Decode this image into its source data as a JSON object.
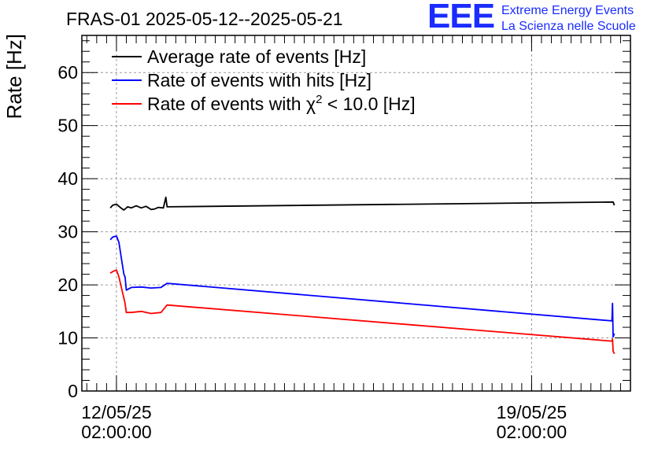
{
  "chart_data": {
    "type": "line",
    "title": "FRAS-01 2025-05-12--2025-05-21",
    "ylabel": "Rate [Hz]",
    "xlabel": "",
    "ylim": [
      0,
      67
    ],
    "yticks": [
      0,
      10,
      20,
      30,
      40,
      50,
      60
    ],
    "x_range": [
      "2025-05-11 12:00",
      "2025-05-20 18:00"
    ],
    "x_ticks": [
      {
        "x": "2025-05-12 02:00",
        "label_line1": "12/05/25",
        "label_line2": "02:00:00"
      },
      {
        "x": "2025-05-19 02:00",
        "label_line1": "19/05/25",
        "label_line2": "02:00:00"
      }
    ],
    "grid": true,
    "legend_position": "top-left",
    "series": [
      {
        "name": "Average rate of events [Hz]",
        "legend_prefix": "Average rate of events [Hz]",
        "legend_sup": "",
        "legend_suffix": "",
        "color": "#000000",
        "points": [
          [
            "2025-05-11 23:30",
            34.5
          ],
          [
            "2025-05-12 00:30",
            35.0
          ],
          [
            "2025-05-12 02:00",
            35.2
          ],
          [
            "2025-05-12 03:30",
            34.6
          ],
          [
            "2025-05-12 05:00",
            34.1
          ],
          [
            "2025-05-12 06:30",
            34.7
          ],
          [
            "2025-05-12 08:00",
            34.5
          ],
          [
            "2025-05-12 10:00",
            34.9
          ],
          [
            "2025-05-12 12:00",
            34.5
          ],
          [
            "2025-05-12 14:00",
            34.8
          ],
          [
            "2025-05-12 16:00",
            34.2
          ],
          [
            "2025-05-12 17:30",
            34.3
          ],
          [
            "2025-05-12 19:00",
            34.6
          ],
          [
            "2025-05-12 21:00",
            34.5
          ],
          [
            "2025-05-12 22:00",
            36.5
          ],
          [
            "2025-05-12 22:30",
            34.7
          ],
          [
            "2025-05-20 11:00",
            35.6
          ],
          [
            "2025-05-20 11:30",
            35.0
          ]
        ]
      },
      {
        "name": "Rate of events with hits [Hz]",
        "legend_prefix": "Rate of events with hits [Hz]",
        "legend_sup": "",
        "legend_suffix": "",
        "color": "#0000ff",
        "points": [
          [
            "2025-05-11 23:30",
            28.5
          ],
          [
            "2025-05-12 00:30",
            29.0
          ],
          [
            "2025-05-12 02:00",
            29.2
          ],
          [
            "2025-05-12 03:00",
            28.0
          ],
          [
            "2025-05-12 04:00",
            25.0
          ],
          [
            "2025-05-12 05:00",
            22.0
          ],
          [
            "2025-05-12 05:30",
            21.5
          ],
          [
            "2025-05-12 06:00",
            19.0
          ],
          [
            "2025-05-12 08:00",
            19.5
          ],
          [
            "2025-05-12 12:00",
            19.6
          ],
          [
            "2025-05-12 16:00",
            19.4
          ],
          [
            "2025-05-12 20:00",
            19.5
          ],
          [
            "2025-05-12 22:30",
            20.3
          ],
          [
            "2025-05-20 10:30",
            13.2
          ],
          [
            "2025-05-20 10:45",
            16.5
          ],
          [
            "2025-05-20 11:00",
            10.2
          ],
          [
            "2025-05-20 11:30",
            10.8
          ]
        ]
      },
      {
        "name": "Rate of events with χ2 < 10.0 [Hz]",
        "legend_prefix": "Rate of events with χ",
        "legend_sup": "2",
        "legend_suffix": " < 10.0 [Hz]",
        "color": "#ff0000",
        "points": [
          [
            "2025-05-11 23:30",
            22.2
          ],
          [
            "2025-05-12 00:30",
            22.5
          ],
          [
            "2025-05-12 02:00",
            22.8
          ],
          [
            "2025-05-12 03:00",
            21.5
          ],
          [
            "2025-05-12 04:00",
            19.5
          ],
          [
            "2025-05-12 05:00",
            17.5
          ],
          [
            "2025-05-12 05:30",
            16.5
          ],
          [
            "2025-05-12 06:00",
            14.8
          ],
          [
            "2025-05-12 08:00",
            14.8
          ],
          [
            "2025-05-12 12:00",
            15.0
          ],
          [
            "2025-05-12 16:00",
            14.6
          ],
          [
            "2025-05-12 20:00",
            14.8
          ],
          [
            "2025-05-12 22:30",
            16.2
          ],
          [
            "2025-05-20 10:30",
            9.4
          ],
          [
            "2025-05-20 10:45",
            9.8
          ],
          [
            "2025-05-20 11:00",
            7.5
          ],
          [
            "2025-05-20 11:30",
            7.0
          ]
        ]
      }
    ]
  },
  "logo": {
    "mark": "EEE",
    "line1": "Extreme Energy Events",
    "line2": "La Scienza nelle Scuole",
    "color": "#1a2cff"
  }
}
